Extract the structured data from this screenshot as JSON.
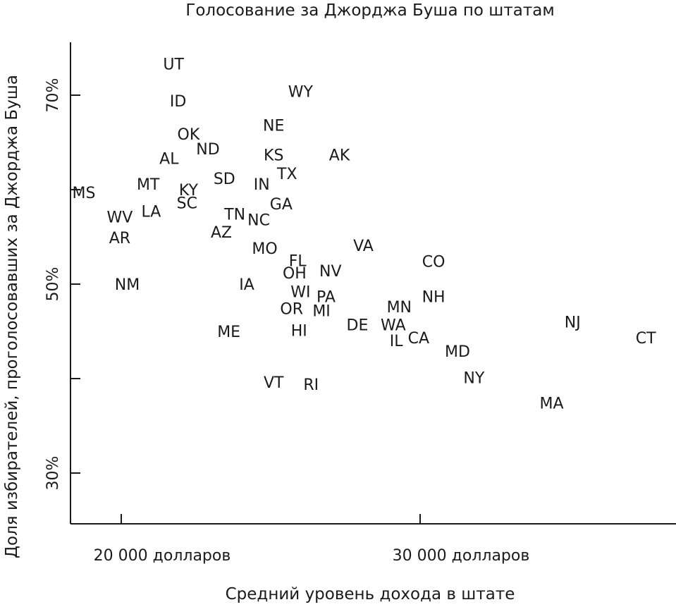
{
  "chart_data": {
    "type": "scatter",
    "title": "Голосование за Джорджа Буша по штатам",
    "xlabel": "Средний уровень дохода в штате",
    "ylabel": "Доля избирателей, проголосовавших за Джорджа Буша",
    "xlim": [
      18300,
      39000
    ],
    "ylim": [
      25,
      80
    ],
    "x_ticks": [
      {
        "value": 20000,
        "label": "20 000 долларов"
      },
      {
        "value": 30000,
        "label": "30 000 долларов"
      }
    ],
    "y_ticks": [
      {
        "value": 30,
        "label": "30%"
      },
      {
        "value": 40,
        "label": ""
      },
      {
        "value": 50,
        "label": "50%"
      },
      {
        "value": 60,
        "label": ""
      },
      {
        "value": 70,
        "label": "70%"
      }
    ],
    "grid": false,
    "marker": "state-abbreviation-text",
    "points": [
      {
        "label": "UT",
        "x": 21750,
        "y": 73.2
      },
      {
        "label": "ID",
        "x": 21900,
        "y": 69.3
      },
      {
        "label": "WY",
        "x": 26000,
        "y": 70.3
      },
      {
        "label": "NE",
        "x": 25100,
        "y": 66.7
      },
      {
        "label": "OK",
        "x": 22250,
        "y": 65.8
      },
      {
        "label": "ND",
        "x": 22900,
        "y": 64.2
      },
      {
        "label": "AL",
        "x": 21600,
        "y": 63.2
      },
      {
        "label": "KS",
        "x": 25100,
        "y": 63.6
      },
      {
        "label": "AK",
        "x": 27300,
        "y": 63.6
      },
      {
        "label": "TX",
        "x": 25550,
        "y": 61.6
      },
      {
        "label": "SD",
        "x": 23450,
        "y": 61.1
      },
      {
        "label": "MT",
        "x": 20900,
        "y": 60.5
      },
      {
        "label": "IN",
        "x": 24700,
        "y": 60.5
      },
      {
        "label": "MS",
        "x": 18750,
        "y": 59.6
      },
      {
        "label": "KY",
        "x": 22250,
        "y": 59.9
      },
      {
        "label": "SC",
        "x": 22200,
        "y": 58.5
      },
      {
        "label": "GA",
        "x": 25350,
        "y": 58.4
      },
      {
        "label": "LA",
        "x": 21000,
        "y": 57.6
      },
      {
        "label": "WV",
        "x": 19950,
        "y": 57.0
      },
      {
        "label": "TN",
        "x": 23800,
        "y": 57.3
      },
      {
        "label": "NC",
        "x": 24600,
        "y": 56.7
      },
      {
        "label": "AR",
        "x": 19950,
        "y": 54.8
      },
      {
        "label": "AZ",
        "x": 23350,
        "y": 55.4
      },
      {
        "label": "VA",
        "x": 28100,
        "y": 54.0
      },
      {
        "label": "MO",
        "x": 24800,
        "y": 53.7
      },
      {
        "label": "FL",
        "x": 25900,
        "y": 52.4
      },
      {
        "label": "CO",
        "x": 30450,
        "y": 52.3
      },
      {
        "label": "NV",
        "x": 27000,
        "y": 51.3
      },
      {
        "label": "OH",
        "x": 25800,
        "y": 51.1
      },
      {
        "label": "NM",
        "x": 20200,
        "y": 49.9
      },
      {
        "label": "IA",
        "x": 24200,
        "y": 49.9
      },
      {
        "label": "WI",
        "x": 26000,
        "y": 49.1
      },
      {
        "label": "PA",
        "x": 26850,
        "y": 48.6
      },
      {
        "label": "NH",
        "x": 30450,
        "y": 48.6
      },
      {
        "label": "MN",
        "x": 29300,
        "y": 47.5
      },
      {
        "label": "OR",
        "x": 25700,
        "y": 47.3
      },
      {
        "label": "MI",
        "x": 26700,
        "y": 47.1
      },
      {
        "label": "NJ",
        "x": 35100,
        "y": 45.9
      },
      {
        "label": "DE",
        "x": 27900,
        "y": 45.6
      },
      {
        "label": "WA",
        "x": 29100,
        "y": 45.6
      },
      {
        "label": "ME",
        "x": 23600,
        "y": 44.9
      },
      {
        "label": "HI",
        "x": 25950,
        "y": 45.0
      },
      {
        "label": "CA",
        "x": 29950,
        "y": 44.2
      },
      {
        "label": "IL",
        "x": 29200,
        "y": 43.9
      },
      {
        "label": "CT",
        "x": 37550,
        "y": 44.2
      },
      {
        "label": "MD",
        "x": 31250,
        "y": 42.8
      },
      {
        "label": "NY",
        "x": 31800,
        "y": 40.0
      },
      {
        "label": "VT",
        "x": 25100,
        "y": 39.5
      },
      {
        "label": "RI",
        "x": 26350,
        "y": 39.3
      },
      {
        "label": "MA",
        "x": 34400,
        "y": 37.3
      }
    ]
  }
}
